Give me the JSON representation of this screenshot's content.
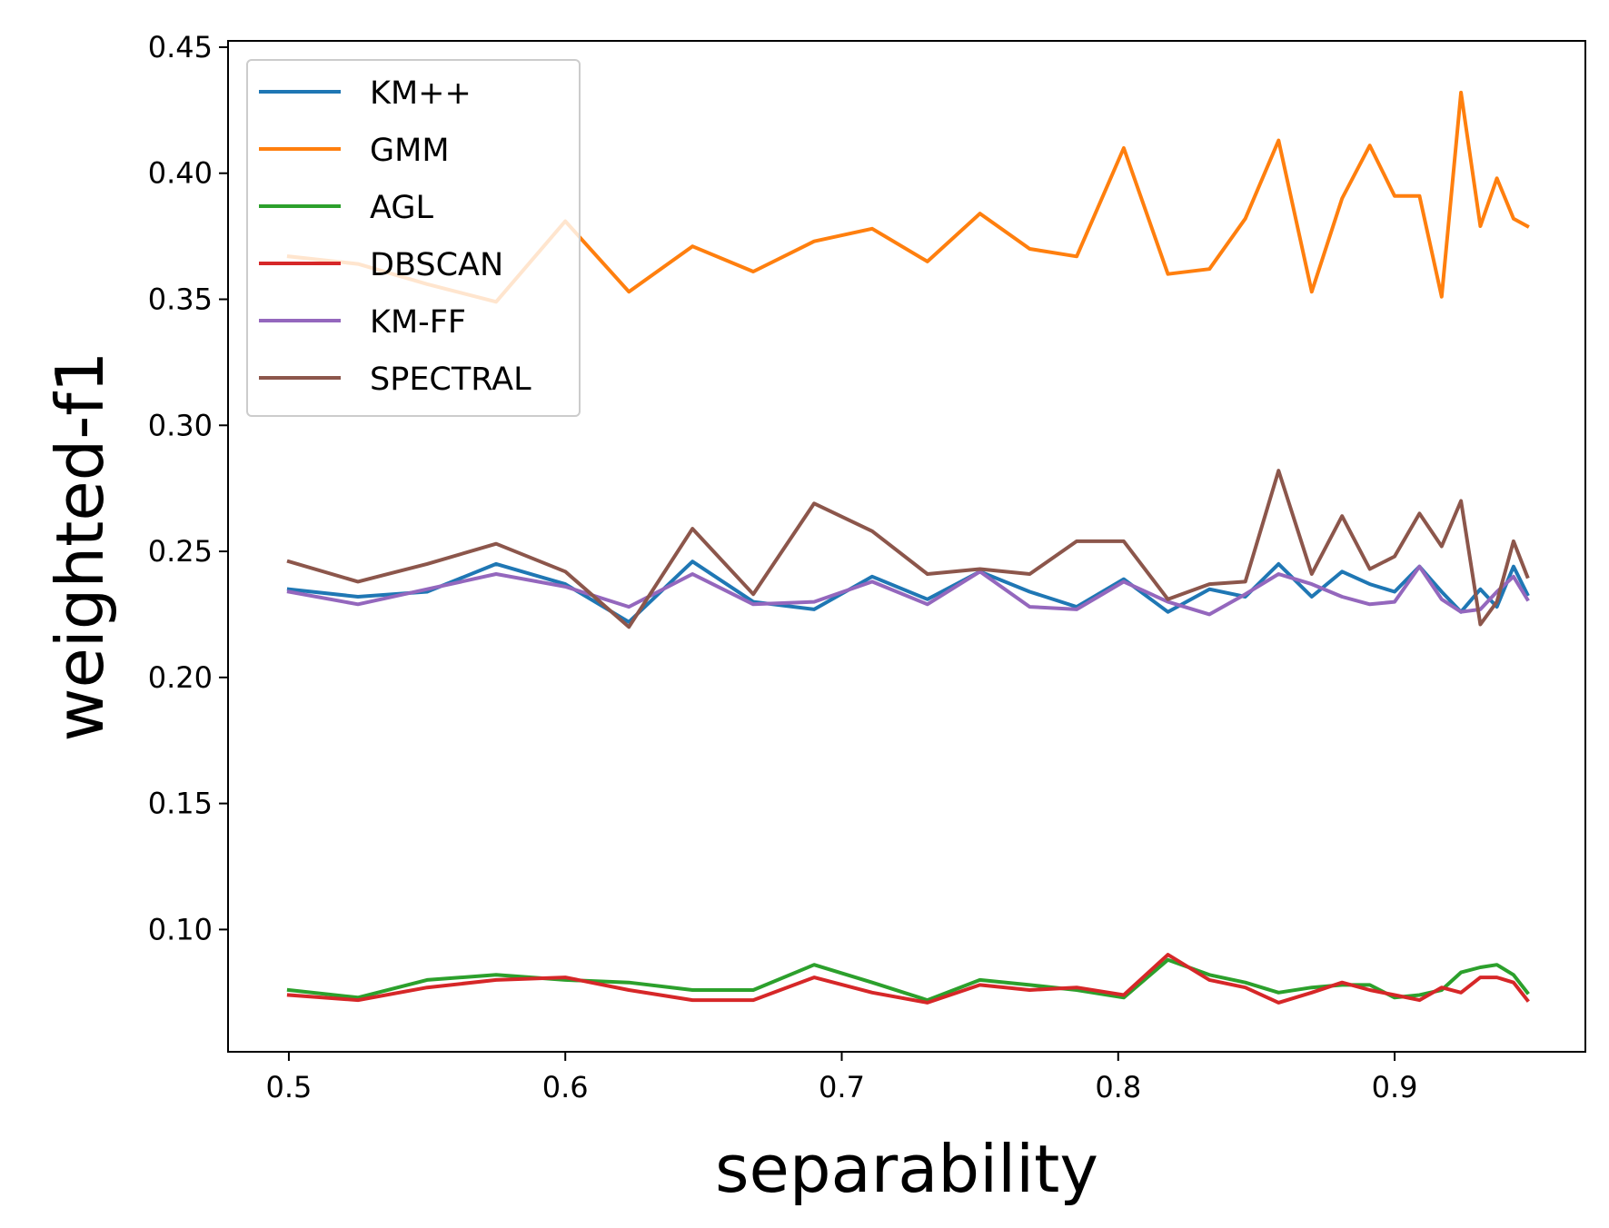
{
  "chart_data": {
    "type": "line",
    "title": "",
    "xlabel": "separability",
    "ylabel": "weighted-f1",
    "xlim": [
      0.478,
      0.969
    ],
    "ylim": [
      0.0515,
      0.4525
    ],
    "xticks": [
      0.5,
      0.6,
      0.7,
      0.8,
      0.9
    ],
    "xtick_labels": [
      "0.5",
      "0.6",
      "0.7",
      "0.8",
      "0.9"
    ],
    "yticks": [
      0.1,
      0.15,
      0.2,
      0.25,
      0.3,
      0.35,
      0.4,
      0.45
    ],
    "ytick_labels": [
      "0.10",
      "0.15",
      "0.20",
      "0.25",
      "0.30",
      "0.35",
      "0.40",
      "0.45"
    ],
    "grid": false,
    "legend_position": "top-left",
    "x": [
      0.5,
      0.525,
      0.55,
      0.575,
      0.6,
      0.623,
      0.646,
      0.668,
      0.69,
      0.711,
      0.731,
      0.75,
      0.768,
      0.785,
      0.802,
      0.818,
      0.833,
      0.846,
      0.858,
      0.87,
      0.881,
      0.891,
      0.9,
      0.909,
      0.917,
      0.924,
      0.931,
      0.937,
      0.943,
      0.948
    ],
    "series": [
      {
        "name": "KM++",
        "color": "#1f77b4",
        "values": [
          0.235,
          0.232,
          0.234,
          0.245,
          0.237,
          0.222,
          0.246,
          0.23,
          0.227,
          0.24,
          0.231,
          0.242,
          0.234,
          0.228,
          0.239,
          0.226,
          0.235,
          0.232,
          0.245,
          0.232,
          0.242,
          0.237,
          0.234,
          0.244,
          0.234,
          0.226,
          0.235,
          0.228,
          0.244,
          0.233
        ]
      },
      {
        "name": "GMM",
        "color": "#ff7f0e",
        "values": [
          0.367,
          0.364,
          0.356,
          0.349,
          0.381,
          0.353,
          0.371,
          0.361,
          0.373,
          0.378,
          0.365,
          0.384,
          0.37,
          0.367,
          0.41,
          0.36,
          0.362,
          0.382,
          0.413,
          0.353,
          0.39,
          0.411,
          0.391,
          0.391,
          0.351,
          0.432,
          0.379,
          0.398,
          0.382,
          0.379
        ]
      },
      {
        "name": "AGL",
        "color": "#2ca02c",
        "values": [
          0.076,
          0.073,
          0.08,
          0.082,
          0.08,
          0.079,
          0.076,
          0.076,
          0.086,
          0.079,
          0.072,
          0.08,
          0.078,
          0.076,
          0.073,
          0.088,
          0.082,
          0.079,
          0.075,
          0.077,
          0.078,
          0.078,
          0.073,
          0.074,
          0.076,
          0.083,
          0.085,
          0.086,
          0.082,
          0.075
        ]
      },
      {
        "name": "DBSCAN",
        "color": "#d62728",
        "values": [
          0.074,
          0.072,
          0.077,
          0.08,
          0.081,
          0.076,
          0.072,
          0.072,
          0.081,
          0.075,
          0.071,
          0.078,
          0.076,
          0.077,
          0.074,
          0.09,
          0.08,
          0.077,
          0.071,
          0.075,
          0.079,
          0.076,
          0.074,
          0.072,
          0.077,
          0.075,
          0.081,
          0.081,
          0.079,
          0.072
        ]
      },
      {
        "name": "KM-FF",
        "color": "#9467bd",
        "values": [
          0.234,
          0.229,
          0.235,
          0.241,
          0.236,
          0.228,
          0.241,
          0.229,
          0.23,
          0.238,
          0.229,
          0.242,
          0.228,
          0.227,
          0.238,
          0.23,
          0.225,
          0.233,
          0.241,
          0.237,
          0.232,
          0.229,
          0.23,
          0.244,
          0.231,
          0.226,
          0.227,
          0.234,
          0.24,
          0.231
        ]
      },
      {
        "name": "SPECTRAL",
        "color": "#8c564b",
        "values": [
          0.246,
          0.238,
          0.245,
          0.253,
          0.242,
          0.22,
          0.259,
          0.233,
          0.269,
          0.258,
          0.241,
          0.243,
          0.241,
          0.254,
          0.254,
          0.231,
          0.237,
          0.238,
          0.282,
          0.241,
          0.264,
          0.243,
          0.248,
          0.265,
          0.252,
          0.27,
          0.221,
          0.23,
          0.254,
          0.24
        ]
      }
    ]
  }
}
